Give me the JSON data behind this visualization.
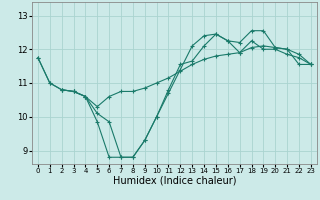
{
  "background_color": "#cceae8",
  "grid_color": "#aad4d0",
  "line_color": "#1a7a6a",
  "marker_color": "#1a7a6a",
  "xlabel": "Humidex (Indice chaleur)",
  "xlabel_fontsize": 7,
  "yticks": [
    9,
    10,
    11,
    12,
    13
  ],
  "xticks": [
    0,
    1,
    2,
    3,
    4,
    5,
    6,
    7,
    8,
    9,
    10,
    11,
    12,
    13,
    14,
    15,
    16,
    17,
    18,
    19,
    20,
    21,
    22,
    23
  ],
  "xlim": [
    -0.5,
    23.5
  ],
  "ylim": [
    8.6,
    13.4
  ],
  "series": [
    {
      "x": [
        0,
        1,
        2,
        3,
        4,
        5,
        6,
        7,
        8,
        9,
        10,
        11,
        12,
        13,
        14,
        15,
        16,
        17,
        18,
        19,
        20,
        21,
        22,
        23
      ],
      "y": [
        11.75,
        11.0,
        10.8,
        10.75,
        10.6,
        10.3,
        10.6,
        10.75,
        10.75,
        10.85,
        11.0,
        11.15,
        11.35,
        11.55,
        11.7,
        11.8,
        11.85,
        11.9,
        12.05,
        12.1,
        12.05,
        12.0,
        11.85,
        11.55
      ]
    },
    {
      "x": [
        0,
        1,
        2,
        3,
        4,
        5,
        6,
        7,
        8,
        9,
        10,
        11,
        12,
        13,
        14,
        15,
        16,
        17,
        18,
        19,
        20,
        21,
        22,
        23
      ],
      "y": [
        11.75,
        11.0,
        10.8,
        10.75,
        10.6,
        9.85,
        8.8,
        8.8,
        8.8,
        9.3,
        10.0,
        10.8,
        11.55,
        11.65,
        12.1,
        12.45,
        12.25,
        11.9,
        12.25,
        12.0,
        12.0,
        11.85,
        11.75,
        11.55
      ]
    },
    {
      "x": [
        2,
        3,
        4,
        5,
        6,
        7,
        8,
        9,
        10,
        11,
        12,
        13,
        14,
        15,
        16,
        17,
        18,
        19,
        20,
        21,
        22,
        23
      ],
      "y": [
        10.8,
        10.75,
        10.6,
        10.1,
        9.85,
        8.8,
        8.8,
        9.3,
        10.0,
        10.7,
        11.4,
        12.1,
        12.4,
        12.45,
        12.25,
        12.2,
        12.55,
        12.55,
        12.05,
        12.0,
        11.55,
        11.55
      ]
    }
  ]
}
